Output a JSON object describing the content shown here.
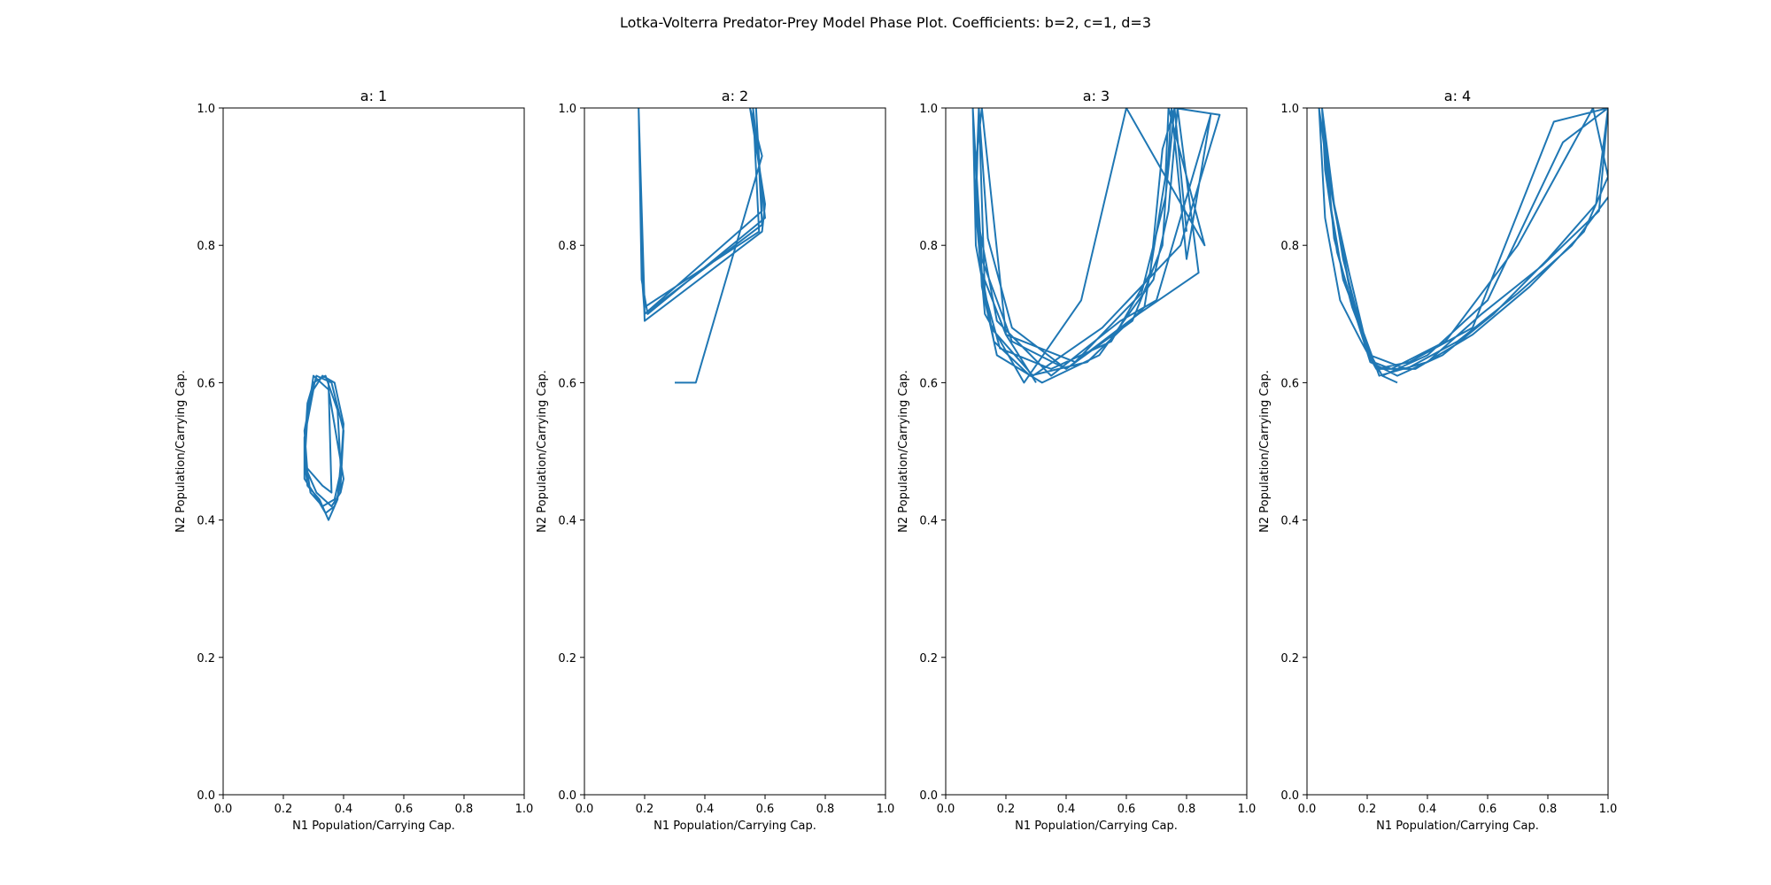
{
  "figure": {
    "suptitle": "Lotka-Volterra Predator-Prey Model Phase Plot. Coefficients: b=2, c=1, d=3",
    "line_color": "#1f77b4"
  },
  "chart_data": [
    {
      "type": "line",
      "title": "a: 1",
      "xlabel": "N1 Population/Carrying Cap.",
      "ylabel": "N2 Population/Carrying Cap.",
      "xlim": [
        0,
        1
      ],
      "ylim": [
        0,
        1
      ],
      "xticks": [
        "0.0",
        "0.2",
        "0.4",
        "0.6",
        "0.8",
        "1.0"
      ],
      "yticks": [
        "0.0",
        "0.2",
        "0.4",
        "0.6",
        "0.8",
        "1.0"
      ],
      "grid": false,
      "series": [
        {
          "x": [
            0.3,
            0.28,
            0.27,
            0.29,
            0.33,
            0.37,
            0.39,
            0.4,
            0.37,
            0.33,
            0.3,
            0.27,
            0.27,
            0.3,
            0.34,
            0.37,
            0.39,
            0.4,
            0.36,
            0.31,
            0.28,
            0.27,
            0.28,
            0.32,
            0.35,
            0.38,
            0.39,
            0.38,
            0.34,
            0.3,
            0.27,
            0.28,
            0.31,
            0.36,
            0.39,
            0.4,
            0.35,
            0.3,
            0.28,
            0.27,
            0.33,
            0.36,
            0.35
          ],
          "y": [
            0.6,
            0.57,
            0.5,
            0.44,
            0.42,
            0.43,
            0.47,
            0.54,
            0.6,
            0.61,
            0.59,
            0.52,
            0.46,
            0.44,
            0.41,
            0.42,
            0.45,
            0.53,
            0.6,
            0.61,
            0.56,
            0.49,
            0.45,
            0.43,
            0.4,
            0.43,
            0.48,
            0.56,
            0.61,
            0.6,
            0.53,
            0.47,
            0.44,
            0.42,
            0.44,
            0.46,
            0.59,
            0.61,
            0.55,
            0.48,
            0.45,
            0.44,
            0.6
          ]
        }
      ]
    },
    {
      "type": "line",
      "title": "a: 2",
      "xlabel": "N1 Population/Carrying Cap.",
      "ylabel": "N2 Population/Carrying Cap.",
      "xlim": [
        0,
        1
      ],
      "ylim": [
        0,
        1
      ],
      "xticks": [
        "0.0",
        "0.2",
        "0.4",
        "0.6",
        "0.8",
        "1.0"
      ],
      "yticks": [
        "0.0",
        "0.2",
        "0.4",
        "0.6",
        "0.8",
        "1.0"
      ],
      "grid": false,
      "series": [
        {
          "x": [
            0.3,
            0.37,
            0.59,
            0.55,
            0.6,
            0.59,
            0.2,
            0.19,
            0.18,
            0.19,
            0.2,
            0.59,
            0.57,
            0.59,
            0.2,
            0.19,
            0.18,
            0.2,
            0.58,
            0.56,
            0.6,
            0.21,
            0.19,
            0.18,
            0.2,
            0.59
          ],
          "y": [
            0.6,
            0.6,
            0.93,
            1.0,
            0.86,
            0.82,
            0.69,
            0.82,
            1.0,
            0.76,
            0.7,
            0.83,
            1.0,
            0.85,
            0.7,
            0.78,
            1.0,
            0.71,
            0.82,
            1.0,
            0.84,
            0.7,
            0.75,
            1.0,
            0.7,
            0.83
          ]
        }
      ]
    },
    {
      "type": "line",
      "title": "a: 3",
      "xlabel": "N1 Population/Carrying Cap.",
      "ylabel": "N2 Population/Carrying Cap.",
      "xlim": [
        0,
        1
      ],
      "ylim": [
        0,
        1
      ],
      "xticks": [
        "0.0",
        "0.2",
        "0.4",
        "0.6",
        "0.8",
        "1.0"
      ],
      "yticks": [
        "0.0",
        "0.2",
        "0.4",
        "0.6",
        "0.8",
        "1.0"
      ],
      "grid": false,
      "series": [
        {
          "x": [
            0.3,
            0.2,
            0.12,
            0.1,
            0.11,
            0.14,
            0.22,
            0.4,
            0.62,
            0.72,
            0.75,
            0.8,
            0.88,
            0.7,
            0.58,
            0.35,
            0.17,
            0.11,
            0.09,
            0.12,
            0.16,
            0.28,
            0.47,
            0.66,
            0.73,
            0.74,
            0.86,
            0.6,
            0.45,
            0.26,
            0.13,
            0.1,
            0.11,
            0.13,
            0.18,
            0.35,
            0.55,
            0.68,
            0.72,
            0.76,
            0.91,
            0.78,
            0.52,
            0.29,
            0.15,
            0.1,
            0.09,
            0.12,
            0.17,
            0.32,
            0.51,
            0.69,
            0.74,
            0.77,
            0.84,
            0.64,
            0.4,
            0.22,
            0.12,
            0.1,
            0.12,
            0.2,
            0.43,
            0.65,
            0.73,
            0.76,
            0.8
          ],
          "y": [
            0.6,
            0.67,
            0.76,
            0.88,
            1.0,
            0.81,
            0.68,
            0.62,
            0.69,
            0.8,
            1.0,
            0.78,
            0.99,
            0.72,
            0.69,
            0.61,
            0.69,
            0.83,
            1.0,
            0.76,
            0.66,
            0.61,
            0.63,
            0.71,
            0.9,
            1.0,
            0.8,
            1.0,
            0.72,
            0.6,
            0.7,
            0.85,
            1.0,
            0.73,
            0.65,
            0.62,
            0.66,
            0.76,
            0.94,
            1.0,
            0.99,
            0.8,
            0.68,
            0.61,
            0.68,
            0.8,
            1.0,
            0.74,
            0.64,
            0.6,
            0.64,
            0.75,
            0.85,
            1.0,
            0.76,
            0.7,
            0.62,
            0.66,
            0.78,
            0.92,
            1.0,
            0.67,
            0.63,
            0.73,
            0.87,
            1.0,
            0.82
          ]
        }
      ]
    },
    {
      "type": "line",
      "title": "a: 4",
      "xlabel": "N1 Population/Carrying Cap.",
      "ylabel": "N2 Population/Carrying Cap.",
      "xlim": [
        0,
        1
      ],
      "ylim": [
        0,
        1
      ],
      "xticks": [
        "0.0",
        "0.2",
        "0.4",
        "0.6",
        "0.8",
        "1.0"
      ],
      "yticks": [
        "0.0",
        "0.2",
        "0.4",
        "0.6",
        "0.8",
        "1.0"
      ],
      "grid": false,
      "series": [
        {
          "x": [
            0.3,
            0.25,
            0.21,
            0.14,
            0.08,
            0.05,
            0.06,
            0.1,
            0.16,
            0.21,
            0.3,
            0.45,
            0.62,
            0.8,
            0.96,
            1.0,
            0.85,
            0.6,
            0.4,
            0.25,
            0.2,
            0.14,
            0.07,
            0.04,
            0.06,
            0.11,
            0.18,
            0.23,
            0.36,
            0.55,
            0.74,
            0.92,
            1.0,
            0.95,
            0.7,
            0.46,
            0.28,
            0.22,
            0.15,
            0.09,
            0.05,
            0.07,
            0.12,
            0.19,
            0.24,
            0.4,
            0.58,
            0.78,
            0.97,
            1.0,
            0.82,
            0.55,
            0.34,
            0.23,
            0.19,
            0.12,
            0.06,
            0.05,
            0.09,
            0.15,
            0.21,
            0.33,
            0.5,
            0.7,
            0.88,
            1.0
          ],
          "y": [
            0.6,
            0.61,
            0.64,
            0.74,
            0.88,
            1.0,
            0.91,
            0.79,
            0.7,
            0.63,
            0.61,
            0.64,
            0.7,
            0.78,
            0.86,
            1.0,
            0.95,
            0.72,
            0.64,
            0.61,
            0.65,
            0.76,
            0.9,
            1.0,
            0.84,
            0.72,
            0.66,
            0.62,
            0.62,
            0.67,
            0.74,
            0.82,
            0.9,
            1.0,
            0.8,
            0.66,
            0.62,
            0.63,
            0.72,
            0.86,
            1.0,
            0.88,
            0.75,
            0.67,
            0.61,
            0.63,
            0.7,
            0.77,
            0.85,
            1.0,
            0.98,
            0.68,
            0.63,
            0.62,
            0.66,
            0.78,
            0.94,
            1.0,
            0.81,
            0.71,
            0.64,
            0.62,
            0.66,
            0.73,
            0.8,
            0.87
          ]
        }
      ]
    }
  ]
}
